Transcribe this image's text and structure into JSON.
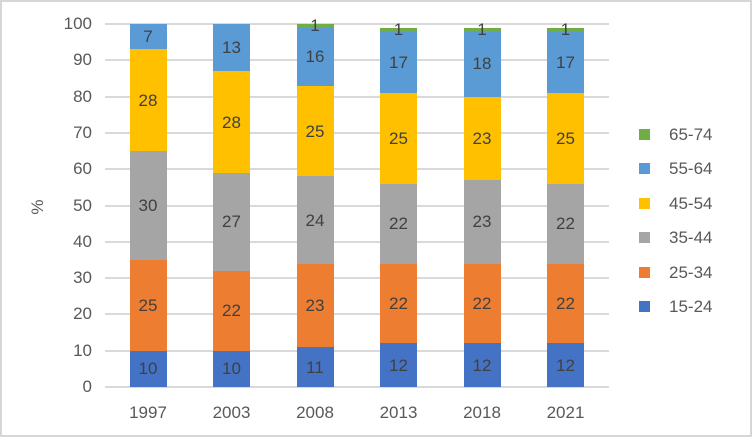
{
  "chart_data": {
    "type": "bar",
    "stacked": true,
    "title": "",
    "xlabel": "",
    "ylabel": "%",
    "ylim": [
      0,
      100
    ],
    "y_ticks": [
      0,
      10,
      20,
      30,
      40,
      50,
      60,
      70,
      80,
      90,
      100
    ],
    "grid": true,
    "legend_position": "right",
    "categories": [
      "1997",
      "2003",
      "2008",
      "2013",
      "2018",
      "2021"
    ],
    "series": [
      {
        "name": "15-24",
        "color": "#4472C4",
        "values": [
          10,
          10,
          11,
          12,
          12,
          12
        ]
      },
      {
        "name": "25-34",
        "color": "#ED7D31",
        "values": [
          25,
          22,
          23,
          22,
          22,
          22
        ]
      },
      {
        "name": "35-44",
        "color": "#A5A5A5",
        "values": [
          30,
          27,
          24,
          22,
          23,
          22
        ]
      },
      {
        "name": "45-54",
        "color": "#FFC000",
        "values": [
          28,
          28,
          25,
          25,
          23,
          25
        ]
      },
      {
        "name": "55-64",
        "color": "#5B9BD5",
        "values": [
          7,
          13,
          16,
          17,
          18,
          17
        ]
      },
      {
        "name": "65-74",
        "color": "#70AD47",
        "values": [
          0,
          0,
          1,
          1,
          1,
          1
        ]
      }
    ],
    "legend_order_top_to_bottom": [
      "65-74",
      "55-64",
      "45-54",
      "35-44",
      "25-34",
      "15-24"
    ],
    "colors": {
      "axis_text": "#595959",
      "data_label_text": "#404040",
      "gridline": "#D9D9D9",
      "background": "#FFFFFF",
      "border": "#D6D6D6"
    }
  }
}
